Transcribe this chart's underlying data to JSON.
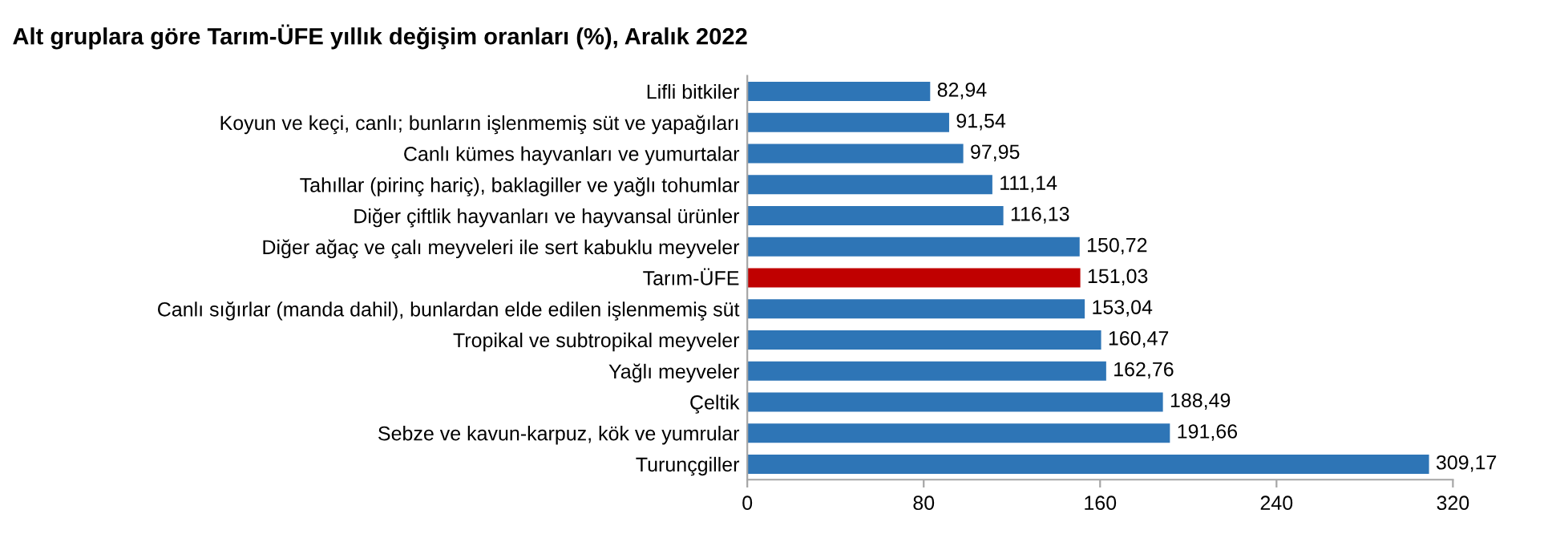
{
  "chart_data": {
    "type": "bar",
    "orientation": "horizontal",
    "title": "Alt gruplara göre Tarım-ÜFE yıllık değişim oranları (%), Aralık 2022",
    "categories": [
      "Lifli bitkiler",
      "Koyun ve keçi, canlı; bunların işlenmemiş süt ve yapağıları",
      "Canlı kümes hayvanları ve yumurtalar",
      "Tahıllar (pirinç hariç), baklagiller ve yağlı tohumlar",
      "Diğer çiftlik hayvanları ve hayvansal ürünler",
      "Diğer ağaç ve çalı meyveleri ile sert kabuklu meyveler",
      "Tarım-ÜFE",
      "Canlı sığırlar (manda dahil), bunlardan elde edilen işlenmemiş süt",
      "Tropikal ve subtropikal meyveler",
      "Yağlı meyveler",
      "Çeltik",
      "Sebze ve kavun-karpuz, kök ve yumrular",
      "Turunçgiller"
    ],
    "values": [
      82.94,
      91.54,
      97.95,
      111.14,
      116.13,
      150.72,
      151.03,
      153.04,
      160.47,
      162.76,
      188.49,
      191.66,
      309.17
    ],
    "value_labels": [
      "82,94",
      "91,54",
      "97,95",
      "111,14",
      "116,13",
      "150,72",
      "151,03",
      "153,04",
      "160,47",
      "162,76",
      "188,49",
      "191,66",
      "309,17"
    ],
    "colors": [
      "#2e75b6",
      "#2e75b6",
      "#2e75b6",
      "#2e75b6",
      "#2e75b6",
      "#2e75b6",
      "#c00000",
      "#2e75b6",
      "#2e75b6",
      "#2e75b6",
      "#2e75b6",
      "#2e75b6",
      "#2e75b6"
    ],
    "xlim": [
      0,
      320
    ],
    "xticks": [
      0,
      80,
      160,
      240,
      320
    ],
    "grid": false,
    "legend": false
  }
}
